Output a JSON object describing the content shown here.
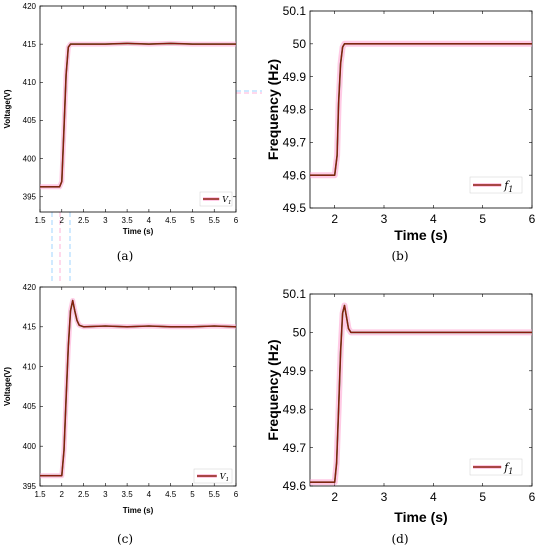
{
  "chart_data": [
    {
      "type": "line",
      "caption": "(a)",
      "xlabel": "Time (s)",
      "ylabel": "Voltage(V)",
      "xlim": [
        1.5,
        6
      ],
      "ylim": [
        393,
        420
      ],
      "xticks": [
        "1.5",
        "2",
        "2.5",
        "3",
        "3.5",
        "4",
        "4.5",
        "5",
        "5.5",
        "6"
      ],
      "xtick_values": [
        1.5,
        2,
        2.5,
        3,
        3.5,
        4,
        4.5,
        5,
        5.5,
        6
      ],
      "yticks": [
        "395",
        "400",
        "405",
        "410",
        "415",
        "420"
      ],
      "ytick_values": [
        395,
        400,
        405,
        410,
        415,
        420
      ],
      "legend_position": "bottom-right",
      "series": [
        {
          "name": "V1",
          "color": "#8b1a0e",
          "band_color": "#ff9fd0",
          "x": [
            1.5,
            1.95,
            2.0,
            2.05,
            2.1,
            2.15,
            2.2,
            2.3,
            2.5,
            3,
            3.5,
            4,
            4.5,
            5,
            5.5,
            6
          ],
          "y": [
            396.3,
            396.3,
            397.0,
            404.0,
            411.0,
            414.6,
            415.0,
            415.0,
            415.0,
            415.0,
            415.1,
            415.0,
            415.1,
            415.0,
            415.0,
            415.0
          ]
        }
      ]
    },
    {
      "type": "line",
      "caption": "(b)",
      "xlabel": "Time (s)",
      "ylabel": "Frequency (Hz)",
      "xlim": [
        1.5,
        6
      ],
      "ylim": [
        49.5,
        50.1
      ],
      "xticks": [
        "2",
        "3",
        "4",
        "5",
        "6"
      ],
      "xtick_values": [
        2,
        3,
        4,
        5,
        6
      ],
      "yticks": [
        "49.5",
        "49.6",
        "49.7",
        "49.8",
        "49.9",
        "50",
        "50.1"
      ],
      "ytick_values": [
        49.5,
        49.6,
        49.7,
        49.8,
        49.9,
        50,
        50.1
      ],
      "legend_position": "bottom-right",
      "series": [
        {
          "name": "f1",
          "color": "#8b1a0e",
          "band_color": "#ff9fd0",
          "x": [
            1.5,
            2.0,
            2.05,
            2.08,
            2.12,
            2.16,
            2.2,
            2.3,
            2.5,
            3,
            4,
            5,
            6
          ],
          "y": [
            49.6,
            49.6,
            49.66,
            49.82,
            49.94,
            49.99,
            50.0,
            50.0,
            50.0,
            50.0,
            50.0,
            50.0,
            50.0
          ]
        }
      ]
    },
    {
      "type": "line",
      "caption": "(c)",
      "xlabel": "Time (s)",
      "ylabel": "Voltage(V)",
      "xlim": [
        1.5,
        6
      ],
      "ylim": [
        395,
        420
      ],
      "xticks": [
        "1.5",
        "2",
        "2.5",
        "3",
        "3.5",
        "4",
        "4.5",
        "5",
        "5.5",
        "6"
      ],
      "xtick_values": [
        1.5,
        2,
        2.5,
        3,
        3.5,
        4,
        4.5,
        5,
        5.5,
        6
      ],
      "yticks": [
        "395",
        "400",
        "405",
        "410",
        "415",
        "420"
      ],
      "ytick_values": [
        395,
        400,
        405,
        410,
        415,
        420
      ],
      "legend_position": "bottom-right",
      "series": [
        {
          "name": "V1",
          "color": "#8b1a0e",
          "band_color": "#ff9fd0",
          "x": [
            1.5,
            2.0,
            2.05,
            2.1,
            2.15,
            2.2,
            2.25,
            2.3,
            2.35,
            2.4,
            2.5,
            3,
            3.5,
            4,
            4.5,
            5,
            5.5,
            6
          ],
          "y": [
            396.3,
            396.3,
            399.5,
            406.0,
            412.5,
            417.0,
            418.3,
            417.0,
            415.8,
            415.2,
            415.0,
            415.1,
            415.0,
            415.1,
            415.0,
            415.0,
            415.1,
            415.0
          ]
        }
      ]
    },
    {
      "type": "line",
      "caption": "(d)",
      "xlabel": "Time (s)",
      "ylabel": "Frequency (Hz)",
      "xlim": [
        1.5,
        6
      ],
      "ylim": [
        49.6,
        50.1
      ],
      "xticks": [
        "2",
        "3",
        "4",
        "5",
        "6"
      ],
      "xtick_values": [
        2,
        3,
        4,
        5,
        6
      ],
      "yticks": [
        "49.6",
        "49.7",
        "49.8",
        "49.9",
        "50",
        "50.1"
      ],
      "ytick_values": [
        49.6,
        49.7,
        49.8,
        49.9,
        50,
        50.1
      ],
      "legend_position": "bottom-right",
      "series": [
        {
          "name": "f1",
          "color": "#8b1a0e",
          "band_color": "#ff9fd0",
          "x": [
            1.5,
            2.0,
            2.04,
            2.08,
            2.12,
            2.16,
            2.2,
            2.24,
            2.28,
            2.33,
            2.4,
            2.5,
            3,
            4,
            5,
            6
          ],
          "y": [
            49.61,
            49.61,
            49.66,
            49.8,
            49.95,
            50.05,
            50.07,
            50.04,
            50.01,
            50.0,
            50.0,
            50.0,
            50.0,
            50.0,
            50.0,
            50.0
          ]
        }
      ]
    }
  ]
}
